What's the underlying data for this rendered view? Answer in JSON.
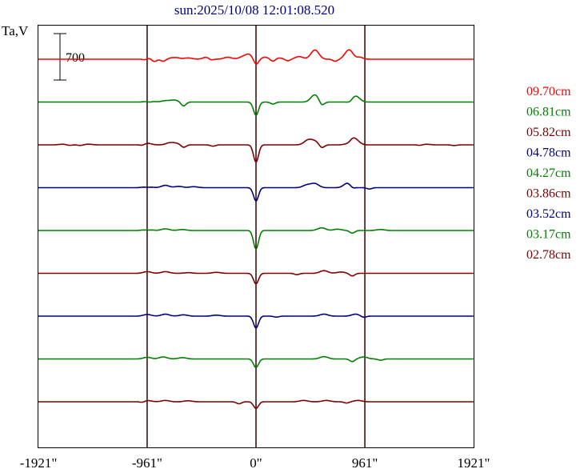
{
  "chart_data": {
    "type": "line",
    "title": "sun:2025/10/08 12:01:08.520",
    "ylabel": "Ta,V",
    "scale_bar_label": "700",
    "xlim": [
      -1921,
      1921
    ],
    "x_ticks": [
      {
        "value": -1921,
        "label": "-1921\""
      },
      {
        "value": -961,
        "label": "-961\""
      },
      {
        "value": 0,
        "label": "0\""
      },
      {
        "value": 961,
        "label": "961\""
      },
      {
        "value": 1921,
        "label": "1921\""
      }
    ],
    "vlines": [
      -961,
      0,
      961
    ],
    "series": [
      {
        "name": "09.70cm",
        "color": "#ff0000",
        "dips": [
          [
            -980,
            20
          ],
          [
            -900,
            40
          ],
          [
            -820,
            30
          ],
          [
            -720,
            15
          ],
          [
            -400,
            30
          ],
          [
            0,
            90
          ],
          [
            150,
            40
          ],
          [
            280,
            25
          ],
          [
            700,
            30
          ],
          [
            880,
            25
          ]
        ],
        "bumps": [
          [
            -950,
            20
          ],
          [
            -720,
            40
          ],
          [
            -600,
            20
          ],
          [
            -430,
            35
          ],
          [
            -250,
            30
          ],
          [
            -120,
            30
          ],
          [
            -60,
            70
          ],
          [
            80,
            30
          ],
          [
            200,
            20
          ],
          [
            380,
            40
          ],
          [
            520,
            140
          ],
          [
            820,
            140
          ],
          [
            900,
            40
          ]
        ]
      },
      {
        "name": "06.81cm",
        "color": "#008000",
        "dips": [
          [
            -940,
            20
          ],
          [
            -640,
            60
          ],
          [
            0,
            200
          ],
          [
            150,
            30
          ],
          [
            580,
            60
          ],
          [
            830,
            20
          ]
        ],
        "bumps": [
          [
            -940,
            20
          ],
          [
            -800,
            20
          ],
          [
            -720,
            30
          ],
          [
            520,
            110
          ],
          [
            880,
            90
          ]
        ]
      },
      {
        "name": "05.82cm",
        "color": "#800000",
        "dips": [
          [
            -1650,
            10
          ],
          [
            -1550,
            10
          ],
          [
            -1000,
            15
          ],
          [
            -640,
            40
          ],
          [
            -380,
            20
          ],
          [
            0,
            260
          ],
          [
            580,
            50
          ],
          [
            820,
            30
          ],
          [
            1450,
            10
          ],
          [
            1750,
            10
          ]
        ],
        "bumps": [
          [
            -1700,
            10
          ],
          [
            -1480,
            10
          ],
          [
            -960,
            25
          ],
          [
            -760,
            30
          ],
          [
            -700,
            20
          ],
          [
            460,
            70
          ],
          [
            520,
            50
          ],
          [
            840,
            70
          ],
          [
            880,
            60
          ],
          [
            1500,
            10
          ]
        ]
      },
      {
        "name": "04.78cm",
        "color": "#000080",
        "dips": [
          [
            -960,
            15
          ],
          [
            0,
            200
          ],
          [
            850,
            30
          ],
          [
            1000,
            20
          ]
        ],
        "bumps": [
          [
            -960,
            20
          ],
          [
            -800,
            35
          ],
          [
            -680,
            20
          ],
          [
            -550,
            15
          ],
          [
            450,
            40
          ],
          [
            520,
            60
          ],
          [
            810,
            70
          ]
        ]
      },
      {
        "name": "04.27cm",
        "color": "#008000",
        "dips": [
          [
            -960,
            15
          ],
          [
            0,
            280
          ],
          [
            850,
            40
          ]
        ],
        "bumps": [
          [
            -960,
            20
          ],
          [
            -800,
            25
          ],
          [
            -650,
            15
          ],
          [
            580,
            40
          ],
          [
            720,
            20
          ],
          [
            1100,
            15
          ]
        ]
      },
      {
        "name": "03.86cm",
        "color": "#800000",
        "dips": [
          [
            0,
            160
          ],
          [
            360,
            20
          ],
          [
            850,
            40
          ]
        ],
        "bumps": [
          [
            -960,
            25
          ],
          [
            -800,
            25
          ],
          [
            -600,
            10
          ],
          [
            -350,
            15
          ],
          [
            600,
            40
          ],
          [
            750,
            20
          ]
        ]
      },
      {
        "name": "03.52cm",
        "color": "#000080",
        "dips": [
          [
            0,
            180
          ],
          [
            180,
            15
          ],
          [
            950,
            20
          ]
        ],
        "bumps": [
          [
            -960,
            25
          ],
          [
            -800,
            30
          ],
          [
            -640,
            20
          ],
          [
            -350,
            15
          ],
          [
            600,
            30
          ],
          [
            880,
            30
          ]
        ]
      },
      {
        "name": "03.17cm",
        "color": "#008000",
        "dips": [
          [
            0,
            130
          ],
          [
            850,
            40
          ],
          [
            1100,
            20
          ]
        ],
        "bumps": [
          [
            -960,
            25
          ],
          [
            -820,
            30
          ],
          [
            -650,
            20
          ],
          [
            600,
            35
          ],
          [
            950,
            30
          ]
        ]
      },
      {
        "name": "02.78cm",
        "color": "#800000",
        "dips": [
          [
            -1000,
            15
          ],
          [
            -150,
            30
          ],
          [
            0,
            100
          ],
          [
            800,
            20
          ]
        ],
        "bumps": [
          [
            -960,
            20
          ],
          [
            -800,
            20
          ],
          [
            -600,
            15
          ],
          [
            420,
            20
          ],
          [
            620,
            20
          ],
          [
            900,
            20
          ]
        ]
      }
    ]
  }
}
